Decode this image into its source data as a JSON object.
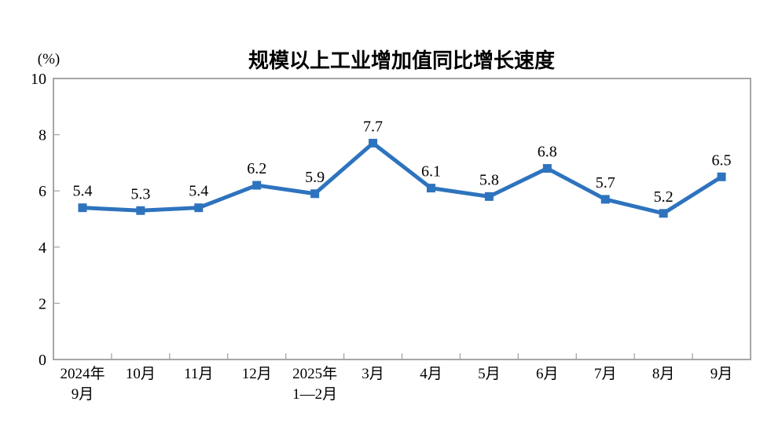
{
  "chart_data": {
    "type": "line",
    "title": "规模以上工业增加值同比增长速度",
    "ylabel": "(%)",
    "xlabel": "",
    "categories": [
      [
        "2024年",
        "9月"
      ],
      [
        "10月"
      ],
      [
        "11月"
      ],
      [
        "12月"
      ],
      [
        "2025年",
        "1—2月"
      ],
      [
        "3月"
      ],
      [
        "4月"
      ],
      [
        "5月"
      ],
      [
        "6月"
      ],
      [
        "7月"
      ],
      [
        "8月"
      ],
      [
        "9月"
      ]
    ],
    "values": [
      5.4,
      5.3,
      5.4,
      6.2,
      5.9,
      7.7,
      6.1,
      5.8,
      6.8,
      5.7,
      5.2,
      6.5
    ],
    "data_labels": [
      "5.4",
      "5.3",
      "5.4",
      "6.2",
      "5.9",
      "7.7",
      "6.1",
      "5.8",
      "6.8",
      "5.7",
      "5.2",
      "6.5"
    ],
    "ylim": [
      0,
      10
    ],
    "yticks": [
      0,
      2,
      4,
      6,
      8,
      10
    ],
    "grid": false,
    "legend": "none",
    "marker": "square",
    "line_color": "#2e73be",
    "axis_color": "#a6a6a6",
    "text_color": "#000000",
    "background_color": "#ffffff"
  }
}
